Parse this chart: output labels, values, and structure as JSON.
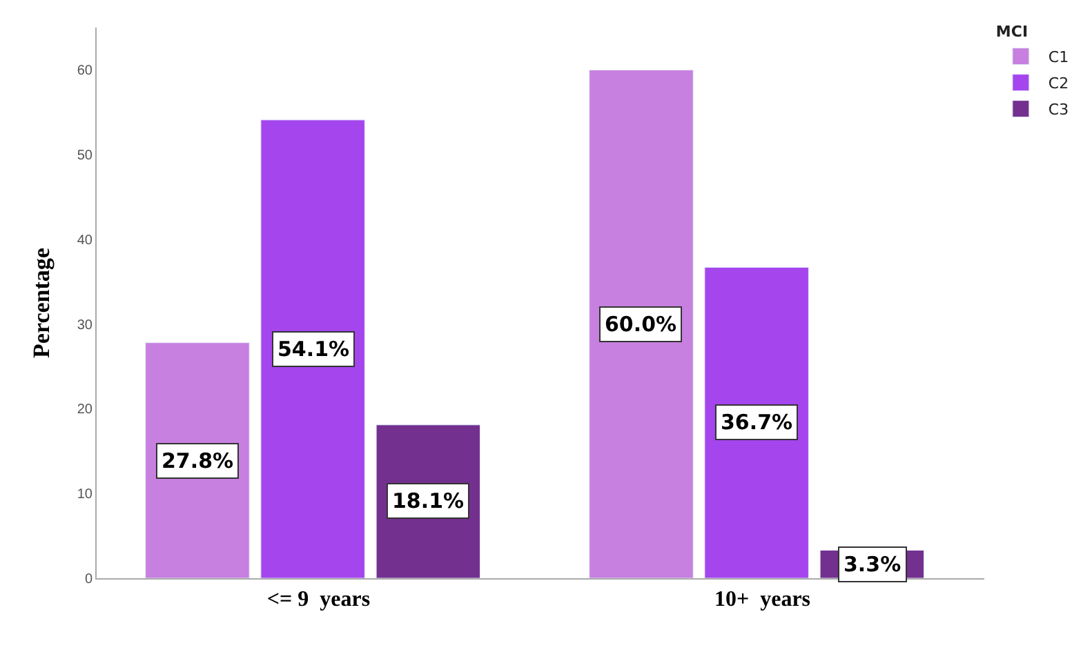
{
  "chart_data": {
    "type": "bar",
    "ylabel": "Percentage",
    "legend_title": "MCI",
    "categories": [
      "<= 9  years",
      "10+  years"
    ],
    "series": [
      {
        "name": "C1",
        "color": "#c77fe0",
        "values": [
          27.8,
          60.0
        ],
        "value_labels": [
          "27.8%",
          "60.0%"
        ]
      },
      {
        "name": "C2",
        "color": "#a445ee",
        "values": [
          54.1,
          36.7
        ],
        "value_labels": [
          "54.1%",
          "36.7%"
        ]
      },
      {
        "name": "C3",
        "color": "#73308f",
        "values": [
          18.1,
          3.3
        ],
        "value_labels": [
          "18.1%",
          "3.3%"
        ]
      }
    ],
    "ylim": [
      0,
      65
    ],
    "yticks": [
      0,
      10,
      20,
      30,
      40,
      50,
      60
    ],
    "grid": false,
    "legend": "top right"
  }
}
